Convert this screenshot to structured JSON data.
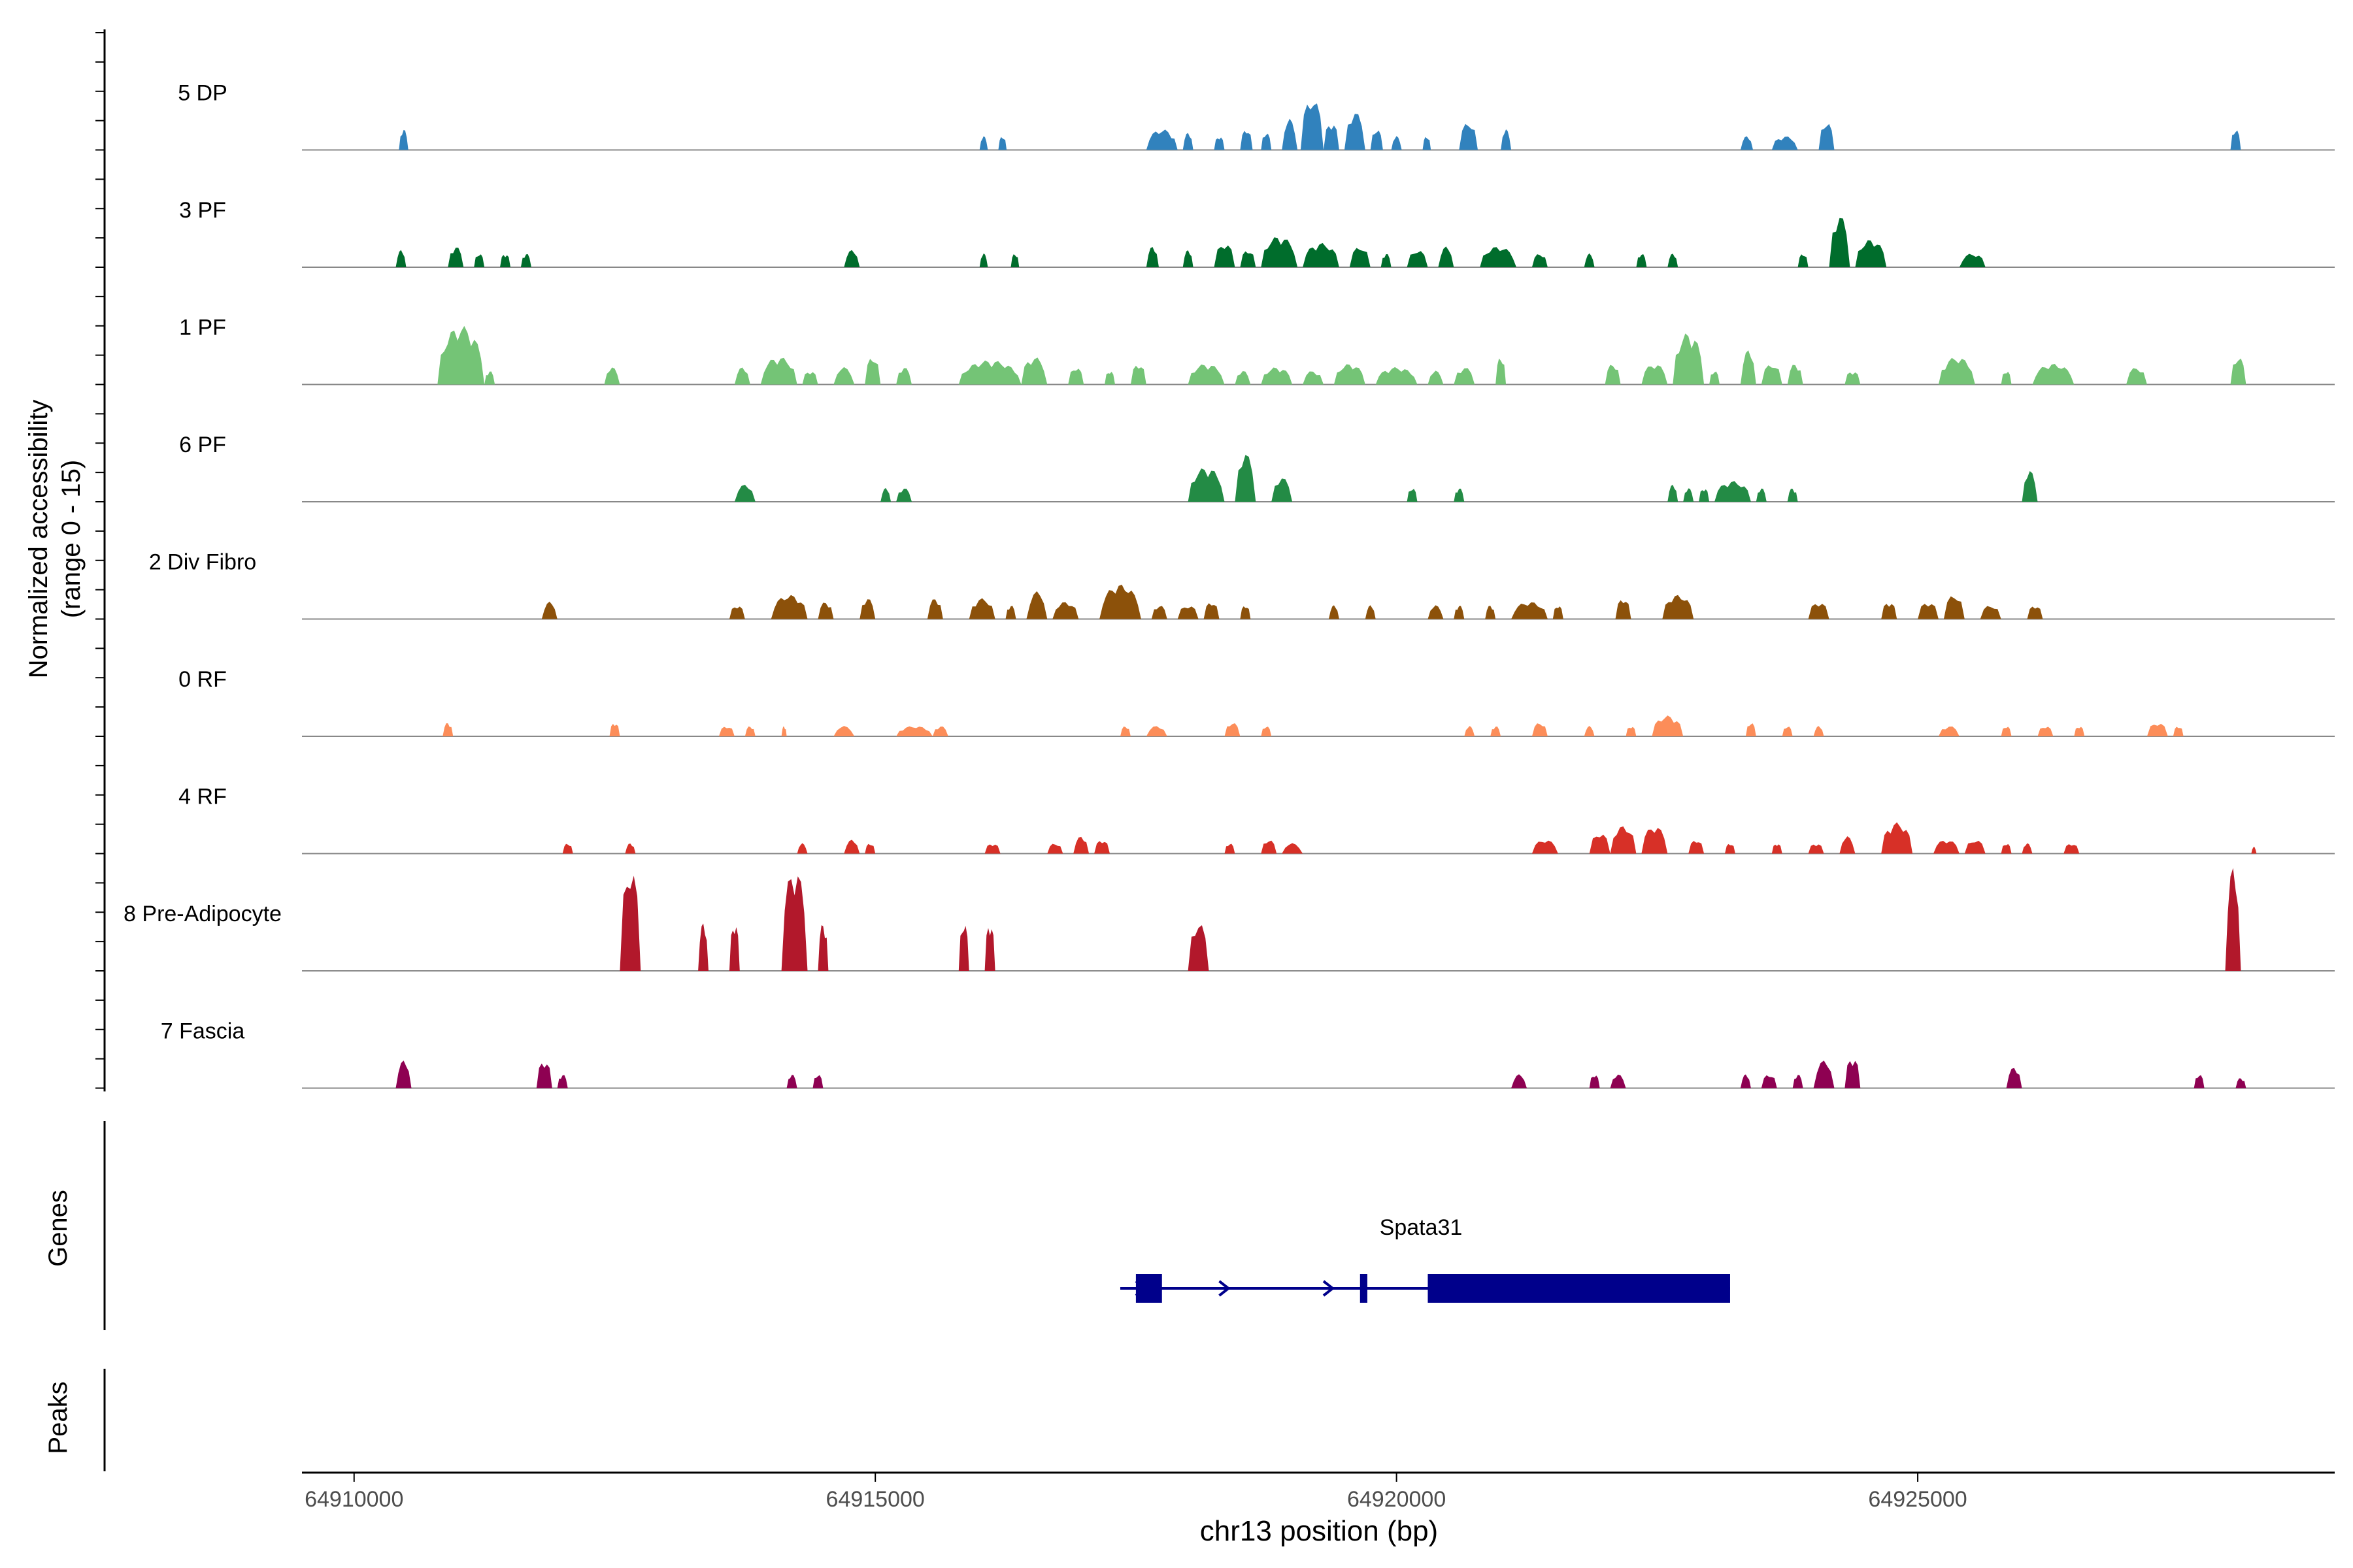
{
  "chart_data": {
    "type": "area",
    "title": "",
    "xlabel": "chr13 position (bp)",
    "ylabel_panel": {
      "line1": "Normalized accessibility",
      "line2": "(range 0 - 15)"
    },
    "genes_label": "Genes",
    "peaks_label": "Peaks",
    "xlim": [
      64909500,
      64929000
    ],
    "ylim": [
      0,
      15
    ],
    "x_ticks": [
      {
        "value": 64910000,
        "label": "64910000"
      },
      {
        "value": 64915000,
        "label": "64915000"
      },
      {
        "value": 64920000,
        "label": "64920000"
      },
      {
        "value": 64925000,
        "label": "64925000"
      }
    ],
    "tracks": [
      {
        "name": "5 DP",
        "color": "#3182bd",
        "peaks": [
          [
            64910430,
            64910520,
            3
          ],
          [
            64916000,
            64916080,
            2
          ],
          [
            64916180,
            64916260,
            2
          ],
          [
            64917600,
            64917900,
            3
          ],
          [
            64917950,
            64918050,
            2.5
          ],
          [
            64918250,
            64918350,
            2
          ],
          [
            64918500,
            64918620,
            3
          ],
          [
            64918700,
            64918800,
            2.5
          ],
          [
            64918900,
            64919050,
            4.5
          ],
          [
            64919080,
            64919300,
            7.5
          ],
          [
            64919300,
            64919450,
            4
          ],
          [
            64919500,
            64919700,
            5.5
          ],
          [
            64919750,
            64919870,
            3
          ],
          [
            64919950,
            64920050,
            2
          ],
          [
            64920250,
            64920330,
            2
          ],
          [
            64920600,
            64920780,
            4
          ],
          [
            64921000,
            64921100,
            3
          ],
          [
            64923300,
            64923420,
            2
          ],
          [
            64923600,
            64923850,
            2
          ],
          [
            64924050,
            64924200,
            4
          ],
          [
            64928000,
            64928100,
            3
          ]
        ]
      },
      {
        "name": "3 PF",
        "color": "#006d2c",
        "peaks": [
          [
            64910400,
            64910500,
            2.5
          ],
          [
            64910900,
            64911050,
            3
          ],
          [
            64911150,
            64911250,
            2
          ],
          [
            64911400,
            64911500,
            2
          ],
          [
            64911600,
            64911700,
            2
          ],
          [
            64914700,
            64914850,
            2.5
          ],
          [
            64916000,
            64916080,
            2
          ],
          [
            64916300,
            64916380,
            2
          ],
          [
            64917600,
            64917720,
            3
          ],
          [
            64917950,
            64918050,
            2.5
          ],
          [
            64918250,
            64918450,
            3.5
          ],
          [
            64918500,
            64918650,
            2.5
          ],
          [
            64918700,
            64919050,
            4.5
          ],
          [
            64919100,
            64919450,
            3.5
          ],
          [
            64919550,
            64919750,
            3
          ],
          [
            64919850,
            64919950,
            2
          ],
          [
            64920100,
            64920300,
            2.5
          ],
          [
            64920400,
            64920550,
            3
          ],
          [
            64920800,
            64921150,
            3
          ],
          [
            64921300,
            64921450,
            2
          ],
          [
            64921800,
            64921900,
            2
          ],
          [
            64922300,
            64922400,
            2
          ],
          [
            64922600,
            64922700,
            2
          ],
          [
            64923850,
            64923950,
            2
          ],
          [
            64924150,
            64924350,
            7.5
          ],
          [
            64924400,
            64924700,
            4
          ],
          [
            64925400,
            64925650,
            2
          ]
        ]
      },
      {
        "name": "1 PF",
        "color": "#74c476",
        "peaks": [
          [
            64910800,
            64911250,
            8.5
          ],
          [
            64911250,
            64911350,
            2
          ],
          [
            64912400,
            64912550,
            2.5
          ],
          [
            64913650,
            64913800,
            2.5
          ],
          [
            64913900,
            64914250,
            4
          ],
          [
            64914300,
            64914450,
            2
          ],
          [
            64914600,
            64914800,
            2.5
          ],
          [
            64914900,
            64915050,
            4
          ],
          [
            64915200,
            64915350,
            2.5
          ],
          [
            64915800,
            64916400,
            3.5
          ],
          [
            64916400,
            64916650,
            4
          ],
          [
            64916850,
            64917000,
            2.5
          ],
          [
            64917200,
            64917300,
            2
          ],
          [
            64917450,
            64917600,
            3
          ],
          [
            64918000,
            64918350,
            3
          ],
          [
            64918450,
            64918600,
            2
          ],
          [
            64918700,
            64919000,
            2.5
          ],
          [
            64919100,
            64919300,
            2
          ],
          [
            64919400,
            64919700,
            3
          ],
          [
            64919800,
            64920200,
            2.5
          ],
          [
            64920300,
            64920450,
            2
          ],
          [
            64920550,
            64920750,
            2.5
          ],
          [
            64920950,
            64921050,
            4
          ],
          [
            64922000,
            64922150,
            3
          ],
          [
            64922350,
            64922600,
            3
          ],
          [
            64922650,
            64922950,
            7.5
          ],
          [
            64923000,
            64923100,
            2
          ],
          [
            64923300,
            64923450,
            5
          ],
          [
            64923500,
            64923700,
            3
          ],
          [
            64923750,
            64923900,
            3
          ],
          [
            64924300,
            64924450,
            2
          ],
          [
            64925200,
            64925550,
            4
          ],
          [
            64925800,
            64925900,
            2
          ],
          [
            64926100,
            64926500,
            3
          ],
          [
            64927000,
            64927200,
            2.5
          ],
          [
            64928000,
            64928150,
            4
          ]
        ]
      },
      {
        "name": "6 PF",
        "color": "#238b45",
        "peaks": [
          [
            64913650,
            64913850,
            2.5
          ],
          [
            64915050,
            64915150,
            2
          ],
          [
            64915200,
            64915350,
            2
          ],
          [
            64918000,
            64918350,
            5
          ],
          [
            64918450,
            64918650,
            7
          ],
          [
            64918800,
            64919000,
            3.5
          ],
          [
            64920100,
            64920200,
            2
          ],
          [
            64920550,
            64920650,
            2
          ],
          [
            64922600,
            64922700,
            2.5
          ],
          [
            64922750,
            64922850,
            2
          ],
          [
            64922900,
            64923000,
            2
          ],
          [
            64923050,
            64923400,
            3
          ],
          [
            64923450,
            64923550,
            2
          ],
          [
            64923750,
            64923850,
            2
          ],
          [
            64926000,
            64926150,
            4.5
          ]
        ]
      },
      {
        "name": "2 Div Fibro",
        "color": "#8c510a",
        "peaks": [
          [
            64911800,
            64911950,
            2.5
          ],
          [
            64913600,
            64913750,
            2
          ],
          [
            64914000,
            64914350,
            3.5
          ],
          [
            64914450,
            64914600,
            2.5
          ],
          [
            64914850,
            64915000,
            3
          ],
          [
            64915500,
            64915650,
            3
          ],
          [
            64915900,
            64916150,
            3
          ],
          [
            64916250,
            64916350,
            2
          ],
          [
            64916450,
            64916650,
            4
          ],
          [
            64916700,
            64916950,
            2.5
          ],
          [
            64917150,
            64917550,
            5
          ],
          [
            64917650,
            64917800,
            2
          ],
          [
            64917900,
            64918100,
            2
          ],
          [
            64918150,
            64918300,
            2.5
          ],
          [
            64918500,
            64918600,
            2
          ],
          [
            64919350,
            64919450,
            2
          ],
          [
            64919700,
            64919800,
            2
          ],
          [
            64920300,
            64920450,
            2
          ],
          [
            64920550,
            64920650,
            2
          ],
          [
            64920850,
            64920950,
            2
          ],
          [
            64921100,
            64921450,
            2.5
          ],
          [
            64921500,
            64921600,
            2
          ],
          [
            64922100,
            64922250,
            3
          ],
          [
            64922550,
            64922850,
            3.5
          ],
          [
            64923950,
            64924150,
            2.5
          ],
          [
            64924650,
            64924800,
            2.5
          ],
          [
            64925000,
            64925200,
            2.5
          ],
          [
            64925250,
            64925450,
            3.5
          ],
          [
            64925600,
            64925800,
            2
          ],
          [
            64926050,
            64926200,
            2
          ]
        ]
      },
      {
        "name": "0 RF",
        "color": "#fc8d59",
        "peaks": [
          [
            64910850,
            64910950,
            2
          ],
          [
            64912450,
            64912550,
            2
          ],
          [
            64913500,
            64913650,
            1.5
          ],
          [
            64913750,
            64913850,
            1.5
          ],
          [
            64914100,
            64914150,
            1.5
          ],
          [
            64914600,
            64914800,
            1.5
          ],
          [
            64915200,
            64915550,
            1.5
          ],
          [
            64915550,
            64915700,
            1.5
          ],
          [
            64917350,
            64917450,
            1.5
          ],
          [
            64917600,
            64917800,
            1.5
          ],
          [
            64918350,
            64918500,
            2
          ],
          [
            64918700,
            64918800,
            1.5
          ],
          [
            64920650,
            64920750,
            1.5
          ],
          [
            64920900,
            64921000,
            1.5
          ],
          [
            64921300,
            64921450,
            2
          ],
          [
            64921800,
            64921900,
            1.5
          ],
          [
            64922200,
            64922300,
            1.5
          ],
          [
            64922450,
            64922750,
            3
          ],
          [
            64923350,
            64923450,
            2
          ],
          [
            64923700,
            64923800,
            1.5
          ],
          [
            64924000,
            64924100,
            1.5
          ],
          [
            64925200,
            64925400,
            1.5
          ],
          [
            64925800,
            64925900,
            1.5
          ],
          [
            64926150,
            64926300,
            1.5
          ],
          [
            64926500,
            64926600,
            1.5
          ],
          [
            64927200,
            64927400,
            2
          ],
          [
            64927450,
            64927550,
            1.5
          ]
        ]
      },
      {
        "name": "4 RF",
        "color": "#d73027",
        "peaks": [
          [
            64912000,
            64912100,
            1.5
          ],
          [
            64912600,
            64912700,
            1.5
          ],
          [
            64914250,
            64914350,
            1.5
          ],
          [
            64914700,
            64914850,
            2
          ],
          [
            64914900,
            64915000,
            1.5
          ],
          [
            64916050,
            64916200,
            1.5
          ],
          [
            64916650,
            64916800,
            1.5
          ],
          [
            64916900,
            64917050,
            2.5
          ],
          [
            64917100,
            64917250,
            2
          ],
          [
            64918350,
            64918450,
            1.5
          ],
          [
            64918700,
            64918850,
            2
          ],
          [
            64918900,
            64919100,
            1.5
          ],
          [
            64921300,
            64921550,
            2
          ],
          [
            64921850,
            64922050,
            3
          ],
          [
            64922050,
            64922300,
            4
          ],
          [
            64922350,
            64922600,
            4
          ],
          [
            64922800,
            64922950,
            2
          ],
          [
            64923150,
            64923250,
            1.5
          ],
          [
            64923600,
            64923700,
            1.5
          ],
          [
            64923950,
            64924100,
            1.5
          ],
          [
            64924250,
            64924400,
            2.5
          ],
          [
            64924650,
            64924950,
            4.5
          ],
          [
            64925150,
            64925400,
            2
          ],
          [
            64925450,
            64925650,
            2
          ],
          [
            64925800,
            64925900,
            1.5
          ],
          [
            64926000,
            64926100,
            1.5
          ],
          [
            64926400,
            64926550,
            1.5
          ],
          [
            64928200,
            64928250,
            1
          ]
        ]
      },
      {
        "name": "8 Pre-Adipocyte",
        "color": "#b2182b",
        "peaks": [
          [
            64912550,
            64912750,
            15
          ],
          [
            64913300,
            64913400,
            7
          ],
          [
            64913600,
            64913700,
            7
          ],
          [
            64914100,
            64914350,
            15
          ],
          [
            64914450,
            64914550,
            7
          ],
          [
            64915800,
            64915900,
            7
          ],
          [
            64916050,
            64916150,
            7
          ],
          [
            64918000,
            64918200,
            7
          ],
          [
            64927950,
            64928100,
            15
          ]
        ]
      },
      {
        "name": "7 Fascia",
        "color": "#8e0152",
        "peaks": [
          [
            64910400,
            64910550,
            4
          ],
          [
            64911750,
            64911900,
            4
          ],
          [
            64911950,
            64912050,
            2
          ],
          [
            64914150,
            64914250,
            2
          ],
          [
            64914400,
            64914500,
            2
          ],
          [
            64921100,
            64921250,
            2
          ],
          [
            64921850,
            64921950,
            2
          ],
          [
            64922050,
            64922200,
            2
          ],
          [
            64923300,
            64923400,
            2
          ],
          [
            64923500,
            64923650,
            2
          ],
          [
            64923800,
            64923900,
            2
          ],
          [
            64924000,
            64924200,
            4
          ],
          [
            64924300,
            64924450,
            4.5
          ],
          [
            64925850,
            64926000,
            3
          ],
          [
            64927650,
            64927750,
            2
          ],
          [
            64928050,
            64928150,
            1.5
          ]
        ]
      }
    ],
    "genes": [
      {
        "name": "Spata31",
        "strand": "+",
        "start": 64917350,
        "end": 64923200,
        "exons": [
          [
            64917500,
            64917750
          ],
          [
            64919650,
            64919720
          ],
          [
            64920300,
            64923200
          ]
        ],
        "arrows": [
          64917550,
          64918350,
          64919350
        ]
      }
    ]
  }
}
